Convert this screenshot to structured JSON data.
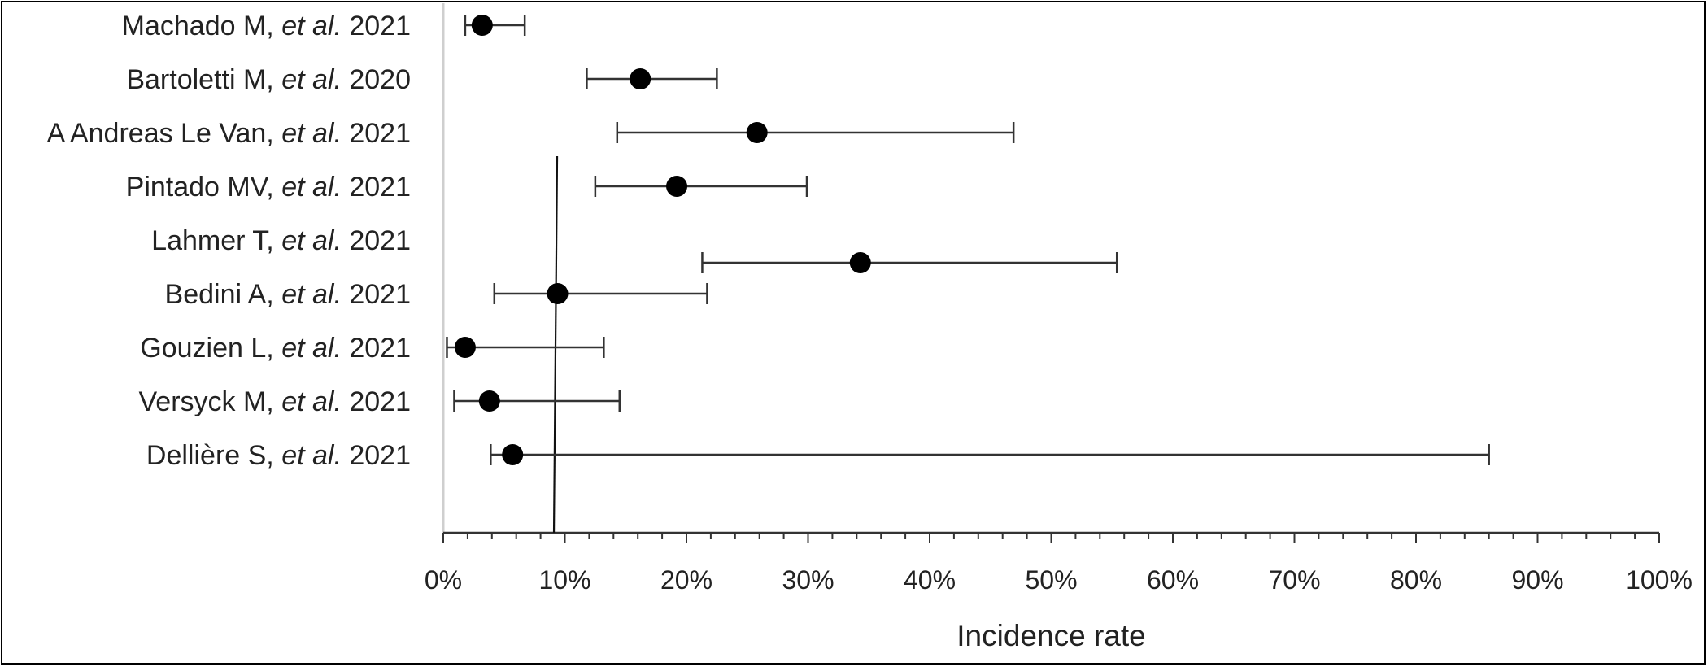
{
  "chart_data": {
    "type": "forest",
    "xlabel": "Incidence rate",
    "xlim": [
      0,
      100
    ],
    "x_ticks": [
      "0%",
      "10%",
      "20%",
      "30%",
      "40%",
      "50%",
      "60%",
      "70%",
      "80%",
      "90%",
      "100%"
    ],
    "reference_line": 9.3,
    "series": [
      {
        "author": "Machado M,",
        "etal": "et al.",
        "year": "2021",
        "estimate": 3.2,
        "lower": 1.8,
        "upper": 6.7
      },
      {
        "author": "Bartoletti M,",
        "etal": "et al.",
        "year": "2020",
        "estimate": 16.2,
        "lower": 11.8,
        "upper": 22.5
      },
      {
        "author": "A Andreas Le Van,",
        "etal": "et al.",
        "year": "2021",
        "estimate": 25.8,
        "lower": 14.3,
        "upper": 46.9
      },
      {
        "author": "Pintado MV,",
        "etal": "et al.",
        "year": "2021",
        "estimate": 19.2,
        "lower": 12.5,
        "upper": 29.9
      },
      {
        "author": "Lahmer T,",
        "etal": "et al.",
        "year": "2021",
        "estimate": 34.3,
        "lower": 21.3,
        "upper": 55.4
      },
      {
        "author": "Bedini A,",
        "etal": "et al.",
        "year": "2021",
        "estimate": 9.4,
        "lower": 4.2,
        "upper": 21.7
      },
      {
        "author": "Gouzien L,",
        "etal": "et al.",
        "year": "2021",
        "estimate": 1.8,
        "lower": 0.3,
        "upper": 13.2
      },
      {
        "author": "Versyck M,",
        "etal": "et al.",
        "year": "2021",
        "estimate": 3.8,
        "lower": 0.9,
        "upper": 14.5
      },
      {
        "author": "Dellière S,",
        "etal": "et al.",
        "year": "2021",
        "estimate": 5.7,
        "lower": 3.9,
        "upper": 86.0
      }
    ]
  }
}
